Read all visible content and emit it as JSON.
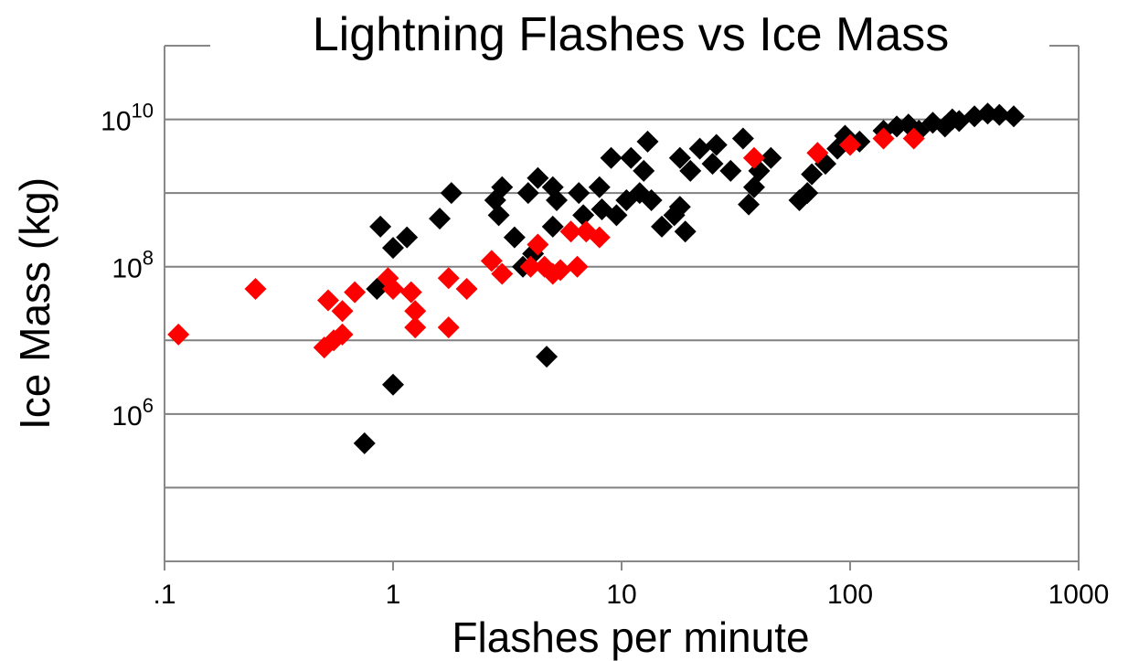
{
  "chart_data": {
    "type": "scatter",
    "title": "Lightning Flashes vs Ice Mass",
    "xlabel": "Flashes per minute",
    "ylabel": "Ice Mass (kg)",
    "x_scale": "log",
    "y_scale": "log",
    "xlim": [
      0.1,
      1000
    ],
    "ylim": [
      10000,
      100000000000
    ],
    "grid": "horizontal",
    "x_ticks": [
      {
        "value": 0.1,
        "label": ".1"
      },
      {
        "value": 1,
        "label": "1"
      },
      {
        "value": 10,
        "label": "10"
      },
      {
        "value": 100,
        "label": "100"
      },
      {
        "value": 1000,
        "label": "1000"
      }
    ],
    "y_ticks": [
      {
        "value": 1000000,
        "base": "10",
        "exp": "6"
      },
      {
        "value": 100000000,
        "base": "10",
        "exp": "8"
      },
      {
        "value": 10000000000,
        "base": "10",
        "exp": "10"
      }
    ],
    "y_gridlines": [
      100000,
      1000000,
      10000000,
      100000000,
      1000000000,
      10000000000
    ],
    "series": [
      {
        "color": "#000000",
        "marker": "diamond",
        "points": [
          [
            0.75,
            400000
          ],
          [
            1.0,
            2500000
          ],
          [
            0.85,
            50000000
          ],
          [
            0.88,
            350000000
          ],
          [
            1.0,
            180000000
          ],
          [
            1.15,
            250000000
          ],
          [
            1.6,
            450000000
          ],
          [
            1.8,
            1000000000
          ],
          [
            2.8,
            800000000
          ],
          [
            3.0,
            1200000000
          ],
          [
            2.9,
            500000000
          ],
          [
            3.4,
            250000000
          ],
          [
            3.7,
            100000000
          ],
          [
            4.1,
            150000000
          ],
          [
            3.9,
            1000000000
          ],
          [
            4.3,
            1600000000
          ],
          [
            5.0,
            1200000000
          ],
          [
            5.2,
            800000000
          ],
          [
            5.0,
            350000000
          ],
          [
            4.7,
            6000000
          ],
          [
            6.5,
            1000000000
          ],
          [
            6.8,
            500000000
          ],
          [
            8.0,
            1200000000
          ],
          [
            8.2,
            600000000
          ],
          [
            9.0,
            3000000000
          ],
          [
            9.5,
            500000000
          ],
          [
            10.5,
            800000000
          ],
          [
            11.0,
            3000000000
          ],
          [
            12.0,
            1000000000
          ],
          [
            12.5,
            2000000000
          ],
          [
            13.0,
            5000000000
          ],
          [
            13.5,
            800000000
          ],
          [
            15.0,
            350000000
          ],
          [
            17.0,
            500000000
          ],
          [
            18.0,
            650000000
          ],
          [
            19.0,
            300000000
          ],
          [
            18.0,
            3000000000
          ],
          [
            20.0,
            2000000000
          ],
          [
            22.0,
            4000000000
          ],
          [
            25.0,
            2500000000
          ],
          [
            26.0,
            4500000000
          ],
          [
            30.0,
            2000000000
          ],
          [
            34.0,
            5500000000
          ],
          [
            36.0,
            700000000
          ],
          [
            38.0,
            1200000000
          ],
          [
            40.0,
            2000000000
          ],
          [
            45.0,
            3000000000
          ],
          [
            60.0,
            800000000
          ],
          [
            65.0,
            1000000000
          ],
          [
            68.0,
            1800000000
          ],
          [
            78.0,
            2500000000
          ],
          [
            88.0,
            4000000000
          ],
          [
            95.0,
            6000000000
          ],
          [
            110.0,
            5000000000
          ],
          [
            140.0,
            7000000000
          ],
          [
            160.0,
            8000000000
          ],
          [
            180.0,
            8500000000
          ],
          [
            200.0,
            7000000000
          ],
          [
            230.0,
            9000000000
          ],
          [
            260.0,
            8000000000
          ],
          [
            280.0,
            10000000000
          ],
          [
            300.0,
            9500000000
          ],
          [
            350.0,
            11000000000
          ],
          [
            400.0,
            12000000000
          ],
          [
            450.0,
            11500000000
          ],
          [
            520.0,
            11000000000
          ]
        ]
      },
      {
        "color": "#ff0000",
        "marker": "diamond",
        "points": [
          [
            0.115,
            12000000
          ],
          [
            0.25,
            50000000
          ],
          [
            0.5,
            8000000
          ],
          [
            0.52,
            35000000
          ],
          [
            0.55,
            10000000
          ],
          [
            0.6,
            25000000
          ],
          [
            0.6,
            12000000
          ],
          [
            0.68,
            45000000
          ],
          [
            0.95,
            70000000
          ],
          [
            1.0,
            50000000
          ],
          [
            1.2,
            45000000
          ],
          [
            1.25,
            25000000
          ],
          [
            1.25,
            15000000
          ],
          [
            1.75,
            70000000
          ],
          [
            1.75,
            15000000
          ],
          [
            2.1,
            50000000
          ],
          [
            2.7,
            120000000
          ],
          [
            3.0,
            80000000
          ],
          [
            4.0,
            100000000
          ],
          [
            4.3,
            200000000
          ],
          [
            4.6,
            100000000
          ],
          [
            5.0,
            80000000
          ],
          [
            5.4,
            90000000
          ],
          [
            6.0,
            300000000
          ],
          [
            6.4,
            100000000
          ],
          [
            7.0,
            300000000
          ],
          [
            8.0,
            250000000
          ],
          [
            38.0,
            3000000000
          ],
          [
            72.0,
            3500000000
          ],
          [
            100.0,
            4500000000
          ],
          [
            140.0,
            5500000000
          ],
          [
            190.0,
            5500000000
          ]
        ]
      }
    ]
  }
}
